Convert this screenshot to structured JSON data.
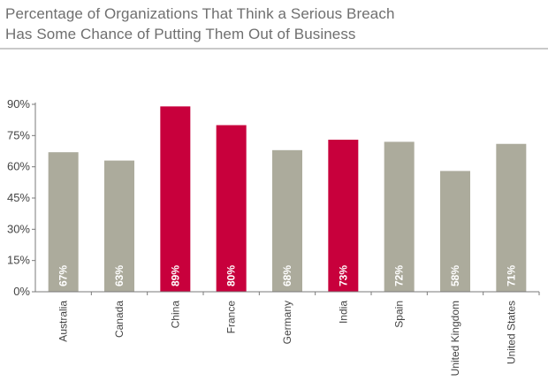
{
  "chart_data": {
    "type": "bar",
    "title_lines": [
      "Percentage of Organizations That Think a Serious Breach",
      "Has Some Chance of Putting Them Out of Business"
    ],
    "title": "Percentage of Organizations That Think a Serious Breach Has Some Chance of Putting Them Out of Business",
    "xlabel": "",
    "ylabel": "",
    "categories": [
      "Australia",
      "Canada",
      "China",
      "France",
      "Germany",
      "India",
      "Spain",
      "United Kingdom",
      "United States"
    ],
    "values": [
      67,
      63,
      89,
      80,
      68,
      73,
      72,
      58,
      71
    ],
    "data_labels": [
      "67%",
      "63%",
      "89%",
      "80%",
      "68%",
      "73%",
      "72%",
      "58%",
      "71%"
    ],
    "highlighted": [
      false,
      false,
      true,
      true,
      false,
      true,
      false,
      false,
      false
    ],
    "ylim": [
      0,
      90
    ],
    "yticks": [
      0,
      15,
      30,
      45,
      60,
      75,
      90
    ],
    "ytick_labels": [
      "0%",
      "15%",
      "30%",
      "45%",
      "60%",
      "75%",
      "90%"
    ],
    "grid": false,
    "legend": "none",
    "colors": {
      "highlight": "#c8003c",
      "default": "#acab9c",
      "axis": "#7a7a7a",
      "title": "#6f6f6f",
      "divider": "#c9c9c9"
    }
  }
}
